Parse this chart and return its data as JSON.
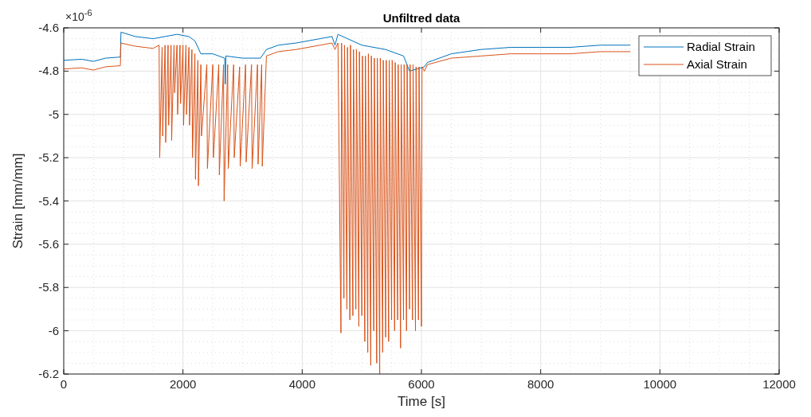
{
  "chart_data": {
    "type": "line",
    "title": "Unfiltred data",
    "xlabel": "Time [s]",
    "ylabel": "Strain [mm/mm]",
    "annotations": [
      "×10$^{-6}$"
    ],
    "xlim": [
      0,
      12000
    ],
    "xticks": [
      0,
      2000,
      4000,
      6000,
      8000,
      10000,
      12000
    ],
    "ylim": [
      -6.2,
      -4.6
    ],
    "yticks": [
      -6.2,
      -6,
      -5.8,
      -5.6,
      -5.4,
      -5.2,
      -5,
      -4.8,
      -4.6
    ],
    "grid": true,
    "legend": "top right",
    "line_style": "solid",
    "series": [
      {
        "name": "Radial Strain",
        "color": "#0072bd",
        "x": [
          0,
          300,
          500,
          700,
          950,
          960,
          1200,
          1500,
          1700,
          1900,
          2100,
          2200,
          2300,
          2500,
          2700,
          2710,
          2720,
          3000,
          3300,
          3400,
          3600,
          3900,
          4300,
          4500,
          4550,
          4600,
          5000,
          5400,
          5700,
          5800,
          6050,
          6100,
          6500,
          7000,
          7500,
          8000,
          8500,
          9000,
          9500
        ],
        "values": [
          -4.75,
          -4.745,
          -4.755,
          -4.74,
          -4.735,
          -4.62,
          -4.64,
          -4.65,
          -4.64,
          -4.63,
          -4.64,
          -4.66,
          -4.72,
          -4.72,
          -4.74,
          -4.86,
          -4.73,
          -4.74,
          -4.74,
          -4.7,
          -4.68,
          -4.67,
          -4.65,
          -4.64,
          -4.68,
          -4.63,
          -4.68,
          -4.7,
          -4.73,
          -4.8,
          -4.78,
          -4.76,
          -4.72,
          -4.7,
          -4.69,
          -4.69,
          -4.69,
          -4.68,
          -4.68
        ]
      },
      {
        "name": "Axial Strain",
        "color": "#d95319",
        "x": [
          0,
          300,
          500,
          700,
          950,
          960,
          1200,
          1500,
          1600,
          1610,
          1650,
          1660,
          1700,
          1710,
          1750,
          1760,
          1800,
          1810,
          1850,
          1860,
          1900,
          1910,
          1950,
          1960,
          2000,
          2010,
          2050,
          2060,
          2100,
          2110,
          2150,
          2160,
          2200,
          2210,
          2250,
          2260,
          2300,
          2310,
          2400,
          2410,
          2500,
          2510,
          2600,
          2610,
          2680,
          2690,
          2750,
          2760,
          2850,
          2860,
          2950,
          2960,
          3050,
          3060,
          3150,
          3160,
          3250,
          3260,
          3320,
          3330,
          3400,
          3600,
          3900,
          4300,
          4500,
          4550,
          4600,
          4650,
          4660,
          4700,
          4710,
          4750,
          4760,
          4800,
          4810,
          4850,
          4860,
          4900,
          4910,
          4950,
          4960,
          5000,
          5010,
          5050,
          5060,
          5100,
          5110,
          5150,
          5160,
          5200,
          5210,
          5250,
          5260,
          5300,
          5310,
          5350,
          5360,
          5400,
          5410,
          5450,
          5460,
          5500,
          5510,
          5550,
          5560,
          5600,
          5610,
          5650,
          5660,
          5700,
          5710,
          5750,
          5760,
          5800,
          5810,
          5850,
          5860,
          5900,
          5910,
          5950,
          5960,
          6000,
          6010,
          6050,
          6100,
          6500,
          7000,
          7500,
          8000,
          8500,
          9000,
          9500
        ],
        "values": [
          -4.79,
          -4.785,
          -4.795,
          -4.78,
          -4.775,
          -4.67,
          -4.685,
          -4.695,
          -4.68,
          -5.2,
          -4.69,
          -5.1,
          -4.68,
          -5.13,
          -4.68,
          -5.05,
          -4.68,
          -5.12,
          -4.68,
          -4.9,
          -4.68,
          -5.0,
          -4.68,
          -4.95,
          -4.68,
          -5.05,
          -4.68,
          -5.0,
          -4.69,
          -5.05,
          -4.7,
          -5.2,
          -4.72,
          -5.3,
          -4.75,
          -5.33,
          -4.77,
          -5.1,
          -4.77,
          -5.25,
          -4.77,
          -5.2,
          -4.77,
          -5.28,
          -4.77,
          -5.4,
          -4.77,
          -5.25,
          -4.77,
          -5.2,
          -4.78,
          -5.24,
          -4.77,
          -5.22,
          -4.77,
          -5.25,
          -4.77,
          -5.23,
          -4.77,
          -5.24,
          -4.73,
          -4.71,
          -4.7,
          -4.68,
          -4.67,
          -4.7,
          -4.67,
          -6.01,
          -4.67,
          -5.85,
          -4.68,
          -5.9,
          -4.69,
          -5.95,
          -4.68,
          -5.93,
          -4.7,
          -5.9,
          -4.7,
          -5.98,
          -4.71,
          -5.93,
          -4.73,
          -6.05,
          -4.73,
          -6.1,
          -4.72,
          -6.16,
          -4.73,
          -6.0,
          -4.74,
          -6.15,
          -4.74,
          -6.2,
          -4.74,
          -6.1,
          -4.75,
          -6.03,
          -4.75,
          -6.05,
          -4.75,
          -5.95,
          -4.75,
          -6.0,
          -4.76,
          -5.95,
          -4.77,
          -6.08,
          -4.77,
          -5.95,
          -4.77,
          -6.0,
          -4.77,
          -5.9,
          -4.77,
          -5.95,
          -4.77,
          -6.0,
          -4.78,
          -5.95,
          -4.78,
          -5.98,
          -4.78,
          -4.8,
          -4.77,
          -4.74,
          -4.73,
          -4.72,
          -4.72,
          -4.72,
          -4.71,
          -4.71
        ]
      }
    ]
  }
}
